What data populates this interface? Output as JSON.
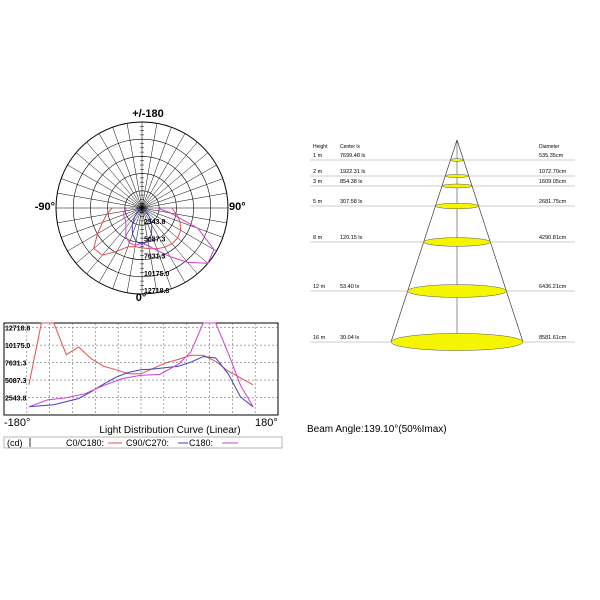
{
  "chart_data": [
    {
      "type": "polar",
      "angle_labels": {
        "top": "+/-180",
        "left": "-90°",
        "right": "90°",
        "bottom": "0°"
      },
      "radial_tick_labels": [
        "2543.8",
        "5087.3",
        "7631.3",
        "10175.0",
        "12718.8"
      ],
      "rmax": 12718.8,
      "series": [
        {
          "color": "#e05050",
          "points": [
            [
              -90,
              4400
            ],
            [
              -80,
              5300
            ],
            [
              -70,
              6200
            ],
            [
              -60,
              7600
            ],
            [
              -50,
              9300
            ],
            [
              -40,
              9100
            ],
            [
              -30,
              7400
            ],
            [
              -20,
              6100
            ],
            [
              -10,
              5800
            ],
            [
              0,
              5900
            ],
            [
              10,
              6100
            ],
            [
              20,
              6400
            ],
            [
              30,
              6700
            ],
            [
              40,
              6900
            ],
            [
              50,
              6900
            ],
            [
              60,
              6600
            ],
            [
              70,
              6000
            ],
            [
              80,
              5200
            ],
            [
              90,
              4400
            ]
          ]
        },
        {
          "color": "#4040c0",
          "points": [
            [
              -60,
              200
            ],
            [
              -50,
              700
            ],
            [
              -40,
              1700
            ],
            [
              -30,
              2900
            ],
            [
              -20,
              4100
            ],
            [
              -10,
              5000
            ],
            [
              0,
              5400
            ],
            [
              10,
              5000
            ],
            [
              20,
              4100
            ],
            [
              30,
              2900
            ],
            [
              40,
              1700
            ],
            [
              50,
              700
            ],
            [
              60,
              200
            ]
          ]
        },
        {
          "color": "#d040d0",
          "points": [
            [
              -90,
              2300
            ],
            [
              -80,
              2700
            ],
            [
              -70,
              2900
            ],
            [
              -60,
              3000
            ],
            [
              -50,
              3100
            ],
            [
              -40,
              3700
            ],
            [
              -30,
              4800
            ],
            [
              -20,
              5500
            ],
            [
              -10,
              5600
            ],
            [
              0,
              5200
            ],
            [
              10,
              5700
            ],
            [
              20,
              6700
            ],
            [
              30,
              8300
            ],
            [
              40,
              10500
            ],
            [
              50,
              12700
            ],
            [
              60,
              12300
            ],
            [
              70,
              8800
            ],
            [
              80,
              4300
            ],
            [
              90,
              2300
            ]
          ]
        }
      ]
    },
    {
      "type": "line",
      "title": "Light Distribution Curve (Linear)",
      "x_tick_labels": [
        "-180°",
        "180°"
      ],
      "y_tick_labels": [
        "12718.8",
        "10175.0",
        "7631.3",
        "5087.3",
        "2543.8"
      ],
      "ylim": [
        0,
        13400
      ],
      "xlim": [
        -110,
        110
      ],
      "legend": {
        "unit": "(cd)",
        "entries": [
          "C0/C180:",
          "C90/C270:",
          "C180:"
        ]
      },
      "series": [
        {
          "name": "C0/C180",
          "color": "#e05050",
          "x": [
            -90,
            -80,
            -70,
            -60,
            -50,
            -40,
            -30,
            -20,
            -10,
            0,
            10,
            20,
            30,
            40,
            50,
            60,
            70,
            80,
            90
          ],
          "y": [
            4400,
            13400,
            13400,
            8800,
            9900,
            8200,
            7100,
            6600,
            6000,
            6000,
            6800,
            7600,
            8100,
            8700,
            8700,
            7800,
            6400,
            5400,
            4400
          ]
        },
        {
          "name": "C90/C270",
          "color": "#4040c0",
          "x": [
            -90,
            -70,
            -50,
            -40,
            -30,
            -20,
            -10,
            0,
            10,
            20,
            30,
            40,
            50,
            60,
            70,
            80,
            90
          ],
          "y": [
            1200,
            1500,
            2400,
            3400,
            4500,
            5500,
            6200,
            6600,
            6700,
            6900,
            7100,
            7700,
            8500,
            8300,
            6000,
            2600,
            1200
          ]
        },
        {
          "name": "C180",
          "color": "#d040d0",
          "x": [
            -90,
            -75,
            -60,
            -45,
            -30,
            -15,
            0,
            15,
            30,
            40,
            50,
            60,
            70,
            80,
            90
          ],
          "y": [
            1200,
            2200,
            2500,
            3100,
            4300,
            5300,
            5800,
            5900,
            7400,
            9200,
            13400,
            13400,
            9000,
            4300,
            1200
          ]
        }
      ]
    },
    {
      "type": "table",
      "headers": [
        "Height",
        "Center lx",
        "Diameter"
      ],
      "rows": [
        {
          "height": "1 m",
          "lux": "7699.48 lx",
          "diameter": "535.35cm"
        },
        {
          "height": "2 m",
          "lux": "1922.31 lx",
          "diameter": "1072.70cm"
        },
        {
          "height": "3 m",
          "lux": "854.38 lx",
          "diameter": "1609.05cm"
        },
        {
          "height": "5 m",
          "lux": "307.58 lx",
          "diameter": "2681.75cm"
        },
        {
          "height": "8 m",
          "lux": "120.15 lx",
          "diameter": "4290.81cm"
        },
        {
          "height": "12 m",
          "lux": "53.40 lx",
          "diameter": "6436.21cm"
        },
        {
          "height": "16 m",
          "lux": "30.04 lx",
          "diameter": "8581.61cm"
        }
      ],
      "beam_angle": "Beam Angle:139.10°(50%Imax)",
      "accent_color": "#f5f500"
    }
  ]
}
